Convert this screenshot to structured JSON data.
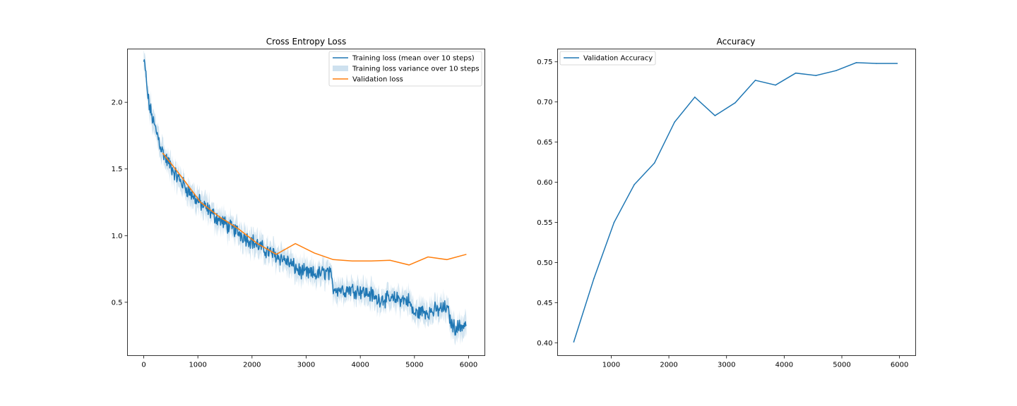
{
  "chart_data": [
    {
      "type": "line",
      "title": "Cross Entropy Loss",
      "xlabel": "",
      "ylabel": "",
      "xlim": [
        -300,
        6300
      ],
      "ylim": [
        0.1,
        2.4
      ],
      "xticks": [
        0,
        1000,
        2000,
        3000,
        4000,
        5000,
        6000
      ],
      "xtick_labels": [
        "0",
        "1000",
        "2000",
        "3000",
        "4000",
        "5000",
        "6000"
      ],
      "yticks": [
        0.5,
        1.0,
        1.5,
        2.0
      ],
      "ytick_labels": [
        "0.5",
        "1.0",
        "1.5",
        "2.0"
      ],
      "grid": false,
      "legend_position": "top-right",
      "legend": [
        "Training loss (mean over 10 steps)",
        "Training loss variance over 10 steps",
        "Validation loss"
      ],
      "colors": {
        "training": "#1f77b4",
        "band": "#1f77b4",
        "validation": "#ff7f0e"
      },
      "series": [
        {
          "name": "Training loss (mean over 10 steps)",
          "x": [
            0,
            30,
            60,
            100,
            150,
            200,
            260,
            320,
            400,
            500,
            600,
            700,
            800,
            900,
            1000,
            1100,
            1200,
            1300,
            1400,
            1500,
            1600,
            1700,
            1800,
            1900,
            2000,
            2100,
            2200,
            2300,
            2400,
            2500,
            2600,
            2700,
            2800,
            2900,
            3000,
            3100,
            3200,
            3300,
            3400,
            3450,
            3500,
            3600,
            3700,
            3800,
            3900,
            4000,
            4100,
            4200,
            4250,
            4300,
            4400,
            4500,
            4600,
            4700,
            4800,
            4900,
            4950,
            5000,
            5100,
            5200,
            5300,
            5400,
            5500,
            5600,
            5700,
            5800,
            5900,
            5960
          ],
          "y": [
            2.3,
            2.25,
            2.1,
            1.98,
            1.9,
            1.82,
            1.75,
            1.66,
            1.58,
            1.52,
            1.45,
            1.4,
            1.35,
            1.3,
            1.26,
            1.22,
            1.19,
            1.15,
            1.12,
            1.09,
            1.06,
            1.04,
            1.01,
            0.98,
            0.96,
            0.93,
            0.9,
            0.88,
            0.86,
            0.84,
            0.82,
            0.79,
            0.76,
            0.73,
            0.72,
            0.71,
            0.71,
            0.72,
            0.73,
            0.7,
            0.61,
            0.6,
            0.59,
            0.6,
            0.59,
            0.59,
            0.57,
            0.56,
            0.54,
            0.52,
            0.53,
            0.52,
            0.52,
            0.53,
            0.52,
            0.51,
            0.45,
            0.41,
            0.43,
            0.43,
            0.43,
            0.44,
            0.45,
            0.46,
            0.32,
            0.31,
            0.33,
            0.34
          ]
        },
        {
          "name": "Validation loss",
          "x": [
            350,
            700,
            1050,
            1400,
            1750,
            2100,
            2450,
            2800,
            3150,
            3500,
            3850,
            4200,
            4550,
            4900,
            5250,
            5600,
            5960
          ],
          "y": [
            1.62,
            1.44,
            1.25,
            1.14,
            1.05,
            0.94,
            0.86,
            0.94,
            0.87,
            0.82,
            0.81,
            0.81,
            0.815,
            0.78,
            0.84,
            0.82,
            0.86
          ]
        }
      ],
      "variance_band": {
        "name": "Training loss variance over 10 steps",
        "typical_half_width": 0.07
      }
    },
    {
      "type": "line",
      "title": "Accuracy",
      "xlabel": "",
      "ylabel": "",
      "xlim": [
        70,
        6280
      ],
      "ylim": [
        0.384,
        0.766
      ],
      "xticks": [
        1000,
        2000,
        3000,
        4000,
        5000,
        6000
      ],
      "xtick_labels": [
        "1000",
        "2000",
        "3000",
        "4000",
        "5000",
        "6000"
      ],
      "yticks": [
        0.4,
        0.45,
        0.5,
        0.55,
        0.6,
        0.65,
        0.7,
        0.75
      ],
      "ytick_labels": [
        "0.40",
        "0.45",
        "0.50",
        "0.55",
        "0.60",
        "0.65",
        "0.70",
        "0.75"
      ],
      "grid": false,
      "legend_position": "top-left",
      "legend": [
        "Validation Accuracy"
      ],
      "colors": {
        "accuracy": "#1f77b4"
      },
      "series": [
        {
          "name": "Validation Accuracy",
          "x": [
            350,
            700,
            1050,
            1400,
            1750,
            2100,
            2450,
            2800,
            3150,
            3500,
            3850,
            4200,
            4550,
            4900,
            5250,
            5600,
            5960
          ],
          "y": [
            0.401,
            0.48,
            0.55,
            0.597,
            0.624,
            0.675,
            0.706,
            0.683,
            0.699,
            0.727,
            0.721,
            0.736,
            0.733,
            0.739,
            0.749,
            0.748,
            0.748
          ]
        }
      ]
    }
  ]
}
